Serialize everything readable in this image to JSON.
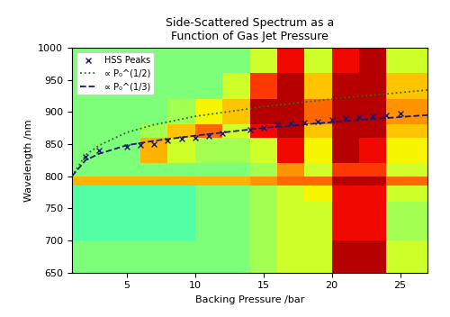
{
  "chart_data": {
    "type": "heatmap",
    "title": "Side-Scattered Spectrum as a\nFunction of Gas Jet Pressure",
    "x_label": "Backing Pressure /bar",
    "y_label": "Wavelength /nm",
    "xlim": [
      1,
      27
    ],
    "xticks": [
      5,
      10,
      15,
      20,
      25
    ],
    "ylim": [
      650,
      1000
    ],
    "yticks": [
      650,
      700,
      750,
      800,
      850,
      900,
      950,
      1000
    ],
    "legend": "upper left",
    "x_edges": [
      1,
      4,
      6,
      8,
      10,
      12,
      14,
      16,
      18,
      20,
      22,
      24,
      27
    ],
    "y_edges": [
      650,
      690,
      700,
      760,
      785,
      800,
      820,
      860,
      880,
      920,
      960,
      1000
    ],
    "zlim": [
      0,
      1
    ],
    "cells": [
      [
        0.5,
        0.5,
        0.5,
        0.5,
        0.5,
        0.5,
        0.55,
        0.6,
        0.6,
        0.95,
        0.95,
        0.6
      ],
      [
        0.5,
        0.5,
        0.5,
        0.5,
        0.5,
        0.5,
        0.55,
        0.6,
        0.6,
        0.95,
        0.95,
        0.6
      ],
      [
        0.45,
        0.45,
        0.45,
        0.45,
        0.5,
        0.5,
        0.55,
        0.6,
        0.6,
        0.9,
        0.9,
        0.55
      ],
      [
        0.45,
        0.45,
        0.45,
        0.45,
        0.5,
        0.5,
        0.55,
        0.6,
        0.65,
        0.9,
        0.9,
        0.6
      ],
      [
        0.72,
        0.72,
        0.72,
        0.72,
        0.72,
        0.72,
        0.75,
        0.8,
        0.8,
        0.95,
        0.95,
        0.8
      ],
      [
        0.5,
        0.5,
        0.5,
        0.5,
        0.5,
        0.5,
        0.55,
        0.75,
        0.6,
        0.85,
        0.85,
        0.6
      ],
      [
        0.5,
        0.5,
        0.72,
        0.6,
        0.55,
        0.55,
        0.6,
        0.9,
        0.65,
        0.95,
        0.9,
        0.65
      ],
      [
        0.5,
        0.5,
        0.55,
        0.7,
        0.8,
        0.6,
        0.9,
        0.95,
        0.7,
        0.95,
        0.95,
        0.7
      ],
      [
        0.5,
        0.5,
        0.5,
        0.55,
        0.65,
        0.7,
        0.95,
        0.95,
        0.8,
        0.95,
        0.95,
        0.75
      ],
      [
        0.5,
        0.5,
        0.5,
        0.5,
        0.5,
        0.6,
        0.85,
        0.95,
        0.7,
        0.95,
        0.95,
        0.7
      ],
      [
        0.5,
        0.5,
        0.5,
        0.5,
        0.5,
        0.5,
        0.6,
        0.9,
        0.6,
        0.9,
        0.95,
        0.6
      ]
    ],
    "series": [
      {
        "name": "HSS Peaks",
        "type": "scatter",
        "marker": "x",
        "color": "#1a1a6e",
        "x": [
          2,
          3,
          5,
          6,
          7,
          8,
          9,
          10,
          11,
          12,
          14,
          15,
          16,
          17,
          18,
          19,
          20,
          21,
          22,
          23,
          24,
          25
        ],
        "values": [
          830,
          840,
          845,
          848,
          850,
          855,
          858,
          860,
          862,
          866,
          872,
          875,
          880,
          882,
          884,
          885,
          888,
          890,
          892,
          893,
          895,
          897
        ]
      },
      {
        "name": "∝ P₀^(1/2)",
        "type": "line",
        "line_style": "dotted",
        "color": "#2b6b2b",
        "x": [
          1,
          2,
          3,
          5,
          7,
          10,
          15,
          20,
          25,
          27
        ],
        "values": [
          800,
          833,
          848,
          868,
          880,
          893,
          908,
          920,
          930,
          934
        ]
      },
      {
        "name": "∝ P₀^(1/3)",
        "type": "line",
        "line_style": "dashed",
        "color": "#1a1a6e",
        "x": [
          1,
          2,
          3,
          5,
          7,
          10,
          15,
          20,
          25,
          27
        ],
        "values": [
          800,
          825,
          835,
          848,
          855,
          863,
          875,
          884,
          892,
          895
        ]
      }
    ]
  }
}
